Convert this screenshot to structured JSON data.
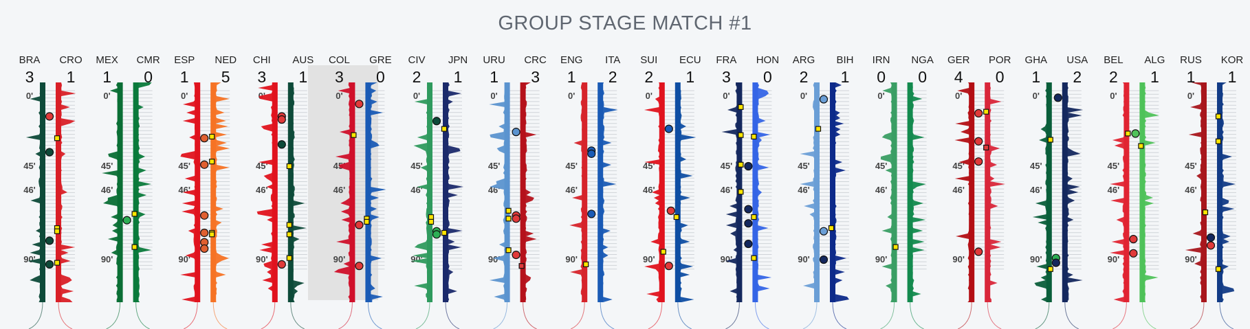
{
  "title": "GROUP STAGE MATCH #1",
  "chart_data": {
    "type": "area",
    "title": "GROUP STAGE MATCH #1",
    "time_ticks": [
      "0'",
      "45'",
      "46'",
      "90'"
    ],
    "highlighted_match": "COL-GRE",
    "matches": [
      {
        "home": {
          "abbr": "BRA",
          "score": "3",
          "color": "#0e4a39",
          "events": [
            {
              "min": 13,
              "kind": "circle",
              "fill": "#e03a3a"
            },
            {
              "min": 36,
              "kind": "circle",
              "fill": "#0e4a39"
            },
            {
              "min": 78,
              "kind": "circle",
              "fill": "#0e4a39"
            },
            {
              "min": 93,
              "kind": "circle",
              "fill": "#0e4a39"
            }
          ]
        },
        "away": {
          "abbr": "CRO",
          "score": "1",
          "color": "#d92027",
          "events": [
            {
              "min": 27,
              "kind": "card",
              "fill": "#ffe600"
            },
            {
              "min": 70,
              "kind": "card",
              "fill": "#ffe600"
            },
            {
              "min": 72,
              "kind": "card",
              "fill": "#ffe600"
            },
            {
              "min": 92,
              "kind": "card",
              "fill": "#ffe600"
            }
          ]
        }
      },
      {
        "home": {
          "abbr": "MEX",
          "score": "1",
          "color": "#0a6e35",
          "events": [
            {
              "min": 65,
              "kind": "circle",
              "fill": "#2eae55"
            }
          ]
        },
        "away": {
          "abbr": "CMR",
          "score": "0",
          "color": "#0a7a3b",
          "events": [
            {
              "min": 61,
              "kind": "card",
              "fill": "#ffe600"
            },
            {
              "min": 82,
              "kind": "card",
              "fill": "#ffe600"
            }
          ]
        }
      },
      {
        "home": {
          "abbr": "ESP",
          "score": "1",
          "color": "#e0131e",
          "events": [
            {
              "min": 27,
              "kind": "circle",
              "fill": "#e06030"
            },
            {
              "min": 44,
              "kind": "circle",
              "fill": "#e06030"
            },
            {
              "min": 62,
              "kind": "circle",
              "fill": "#e06030"
            },
            {
              "min": 73,
              "kind": "circle",
              "fill": "#e06030"
            },
            {
              "min": 79,
              "kind": "circle",
              "fill": "#e06030"
            },
            {
              "min": 83,
              "kind": "circle",
              "fill": "#e06030"
            }
          ]
        },
        "away": {
          "abbr": "NED",
          "score": "5",
          "color": "#f57325",
          "events": [
            {
              "min": 26,
              "kind": "card",
              "fill": "#ffe600"
            },
            {
              "min": 42,
              "kind": "card",
              "fill": "#ffe600"
            },
            {
              "min": 73,
              "kind": "card",
              "fill": "#ffe600"
            },
            {
              "min": 74,
              "kind": "card",
              "fill": "#ffe600"
            }
          ]
        }
      },
      {
        "home": {
          "abbr": "CHI",
          "score": "3",
          "color": "#e0131e",
          "events": [
            {
              "min": 13,
              "kind": "circle",
              "fill": "#e03a3a"
            },
            {
              "min": 15,
              "kind": "circle",
              "fill": "#e03a3a"
            },
            {
              "min": 31,
              "kind": "circle",
              "fill": "#0e4a39"
            },
            {
              "min": 93,
              "kind": "circle",
              "fill": "#e03a3a"
            }
          ]
        },
        "away": {
          "abbr": "AUS",
          "score": "1",
          "color": "#0e4a39",
          "events": [
            {
              "min": 45,
              "kind": "card",
              "fill": "#ffe600"
            },
            {
              "min": 68,
              "kind": "card",
              "fill": "#ffe600"
            },
            {
              "min": 74,
              "kind": "card",
              "fill": "#ffe600"
            },
            {
              "min": 89,
              "kind": "card",
              "fill": "#ffe600"
            }
          ]
        }
      },
      {
        "home": {
          "abbr": "COL",
          "score": "3",
          "color": "#d0102a",
          "events": [
            {
              "min": 5,
              "kind": "circle",
              "fill": "#e03a3a"
            },
            {
              "min": 25,
              "kind": "card",
              "fill": "#ffe600"
            },
            {
              "min": 68,
              "kind": "circle",
              "fill": "#e03a3a"
            },
            {
              "min": 94,
              "kind": "circle",
              "fill": "#e03a3a"
            }
          ]
        },
        "away": {
          "abbr": "GRE",
          "score": "0",
          "color": "#1a5bb5",
          "events": [
            {
              "min": 64,
              "kind": "card",
              "fill": "#ffe600"
            },
            {
              "min": 66,
              "kind": "card",
              "fill": "#ffe600"
            }
          ]
        }
      },
      {
        "home": {
          "abbr": "CIV",
          "score": "2",
          "color": "#2f9a5e",
          "events": [
            {
              "min": 16,
              "kind": "circle",
              "fill": "#0e4a39"
            },
            {
              "min": 63,
              "kind": "card",
              "fill": "#ffe600"
            },
            {
              "min": 66,
              "kind": "card",
              "fill": "#ffe600"
            },
            {
              "min": 72,
              "kind": "circle",
              "fill": "#2eae55"
            },
            {
              "min": 74,
              "kind": "circle",
              "fill": "#2eae55"
            }
          ]
        },
        "away": {
          "abbr": "JPN",
          "score": "1",
          "color": "#1b2a6b",
          "events": [
            {
              "min": 21,
              "kind": "card",
              "fill": "#ffe600"
            },
            {
              "min": 73,
              "kind": "card",
              "fill": "#ffe600"
            }
          ]
        }
      },
      {
        "home": {
          "abbr": "URU",
          "score": "1",
          "color": "#5b93cf",
          "events": [
            {
              "min": 59,
              "kind": "card",
              "fill": "#ffe600"
            },
            {
              "min": 64,
              "kind": "card",
              "fill": "#ffe600"
            },
            {
              "min": 84,
              "kind": "card",
              "fill": "#ffe600"
            }
          ]
        },
        "away": {
          "abbr": "CRC",
          "score": "3",
          "color": "#b5121b",
          "events": [
            {
              "min": 23,
              "kind": "circle",
              "fill": "#5b93cf"
            },
            {
              "min": 62,
              "kind": "circle",
              "fill": "#e03a3a"
            },
            {
              "min": 64,
              "kind": "circle",
              "fill": "#e03a3a"
            },
            {
              "min": 87,
              "kind": "circle",
              "fill": "#e03a3a"
            },
            {
              "min": 94,
              "kind": "red",
              "fill": "#e03a3a"
            }
          ]
        }
      },
      {
        "home": {
          "abbr": "ENG",
          "score": "1",
          "color": "#d6242b",
          "events": [
            {
              "min": 35,
              "kind": "circle",
              "fill": "#1a5bb5"
            },
            {
              "min": 37,
              "kind": "circle",
              "fill": "#1a5bb5"
            },
            {
              "min": 61,
              "kind": "circle",
              "fill": "#1a5bb5"
            },
            {
              "min": 93,
              "kind": "card",
              "fill": "#ffe600"
            }
          ]
        },
        "away": {
          "abbr": "ITA",
          "score": "2",
          "color": "#1a5bb5",
          "events": []
        }
      },
      {
        "home": {
          "abbr": "SUI",
          "score": "2",
          "color": "#e0131e",
          "events": [
            {
              "min": 21,
              "kind": "circle",
              "fill": "#1a5bb5"
            },
            {
              "min": 85,
              "kind": "card",
              "fill": "#ffe600"
            },
            {
              "min": 94,
              "kind": "circle",
              "fill": "#e03a3a"
            }
          ]
        },
        "away": {
          "abbr": "ECU",
          "score": "1",
          "color": "#0f4ea3",
          "events": [
            {
              "min": 59,
              "kind": "circle",
              "fill": "#e03a3a"
            },
            {
              "min": 63,
              "kind": "card",
              "fill": "#ffe600"
            }
          ]
        }
      },
      {
        "home": {
          "abbr": "FRA",
          "score": "3",
          "color": "#14285e",
          "events": [
            {
              "min": 7,
              "kind": "card",
              "fill": "#ffe600"
            },
            {
              "min": 25,
              "kind": "card",
              "fill": "#ffe600"
            },
            {
              "min": 44,
              "kind": "card",
              "fill": "#ffe600"
            },
            {
              "min": 47,
              "kind": "card",
              "fill": "#ffe600"
            }
          ]
        },
        "away": {
          "abbr": "HON",
          "score": "0",
          "color": "#3565e6",
          "events": [
            {
              "min": 26,
              "kind": "card",
              "fill": "#ffe600"
            },
            {
              "min": 45,
              "kind": "circle",
              "fill": "#14285e"
            },
            {
              "min": 58,
              "kind": "circle",
              "fill": "#14285e"
            },
            {
              "min": 63,
              "kind": "card",
              "fill": "#ffe600"
            },
            {
              "min": 67,
              "kind": "circle",
              "fill": "#14285e"
            },
            {
              "min": 80,
              "kind": "circle",
              "fill": "#14285e"
            },
            {
              "min": 89,
              "kind": "card",
              "fill": "#ffe600"
            }
          ]
        }
      },
      {
        "home": {
          "abbr": "ARG",
          "score": "2",
          "color": "#6a9ed6",
          "events": [
            {
              "min": 2,
              "kind": "circle",
              "fill": "#6a9ed6"
            },
            {
              "min": 21,
              "kind": "card",
              "fill": "#ffe600"
            },
            {
              "min": 72,
              "kind": "circle",
              "fill": "#6a9ed6"
            },
            {
              "min": 90,
              "kind": "circle",
              "fill": "#14285e"
            }
          ]
        },
        "away": {
          "abbr": "BIH",
          "score": "1",
          "color": "#0d2a8a",
          "events": [
            {
              "min": 70,
              "kind": "card",
              "fill": "#ffe600"
            }
          ]
        }
      },
      {
        "home": {
          "abbr": "IRN",
          "score": "0",
          "color": "#3a9e64",
          "events": [
            {
              "min": 82,
              "kind": "card",
              "fill": "#ffe600"
            }
          ]
        },
        "away": {
          "abbr": "NGA",
          "score": "0",
          "color": "#138a4e",
          "events": []
        }
      },
      {
        "home": {
          "abbr": "GER",
          "score": "4",
          "color": "#b30f14",
          "events": [
            {
              "min": 11,
              "kind": "circle",
              "fill": "#e03a3a"
            },
            {
              "min": 29,
              "kind": "circle",
              "fill": "#e03a3a"
            },
            {
              "min": 42,
              "kind": "circle",
              "fill": "#e03a3a"
            },
            {
              "min": 85,
              "kind": "circle",
              "fill": "#e03a3a"
            }
          ]
        },
        "away": {
          "abbr": "POR",
          "score": "0",
          "color": "#d9273a",
          "events": [
            {
              "min": 10,
              "kind": "card",
              "fill": "#ffe600"
            },
            {
              "min": 33,
              "kind": "red",
              "fill": "#e03a3a"
            }
          ]
        }
      },
      {
        "home": {
          "abbr": "GHA",
          "score": "1",
          "color": "#0a5e3a",
          "events": [
            {
              "min": 28,
              "kind": "card",
              "fill": "#ffe600"
            },
            {
              "min": 89,
              "kind": "circle",
              "fill": "#2eae55"
            },
            {
              "min": 92,
              "kind": "circle",
              "fill": "#14285e"
            },
            {
              "min": 96,
              "kind": "card",
              "fill": "#ffe600"
            }
          ]
        },
        "away": {
          "abbr": "USA",
          "score": "2",
          "color": "#14285e",
          "events": [
            {
              "min": 1,
              "kind": "circle",
              "fill": "#14285e"
            }
          ]
        }
      },
      {
        "home": {
          "abbr": "BEL",
          "score": "2",
          "color": "#e02432",
          "events": [
            {
              "min": 24,
              "kind": "card",
              "fill": "#ffe600"
            },
            {
              "min": 77,
              "kind": "circle",
              "fill": "#e03a3a"
            },
            {
              "min": 86,
              "kind": "circle",
              "fill": "#e03a3a"
            }
          ]
        },
        "away": {
          "abbr": "ALG",
          "score": "1",
          "color": "#4fc25a",
          "events": [
            {
              "min": 24,
              "kind": "circle",
              "fill": "#4fc25a"
            },
            {
              "min": 32,
              "kind": "card",
              "fill": "#ffe600"
            }
          ]
        }
      },
      {
        "home": {
          "abbr": "RUS",
          "score": "1",
          "color": "#a8161c",
          "events": [
            {
              "min": 60,
              "kind": "card",
              "fill": "#ffe600"
            },
            {
              "min": 76,
              "kind": "circle",
              "fill": "#14285e"
            },
            {
              "min": 81,
              "kind": "circle",
              "fill": "#e03a3a"
            }
          ]
        },
        "away": {
          "abbr": "KOR",
          "score": "1",
          "color": "#123b86",
          "events": [
            {
              "min": 13,
              "kind": "card",
              "fill": "#ffe600"
            },
            {
              "min": 29,
              "kind": "card",
              "fill": "#ffe600"
            },
            {
              "min": 96,
              "kind": "card",
              "fill": "#ffe600"
            }
          ]
        }
      }
    ]
  }
}
